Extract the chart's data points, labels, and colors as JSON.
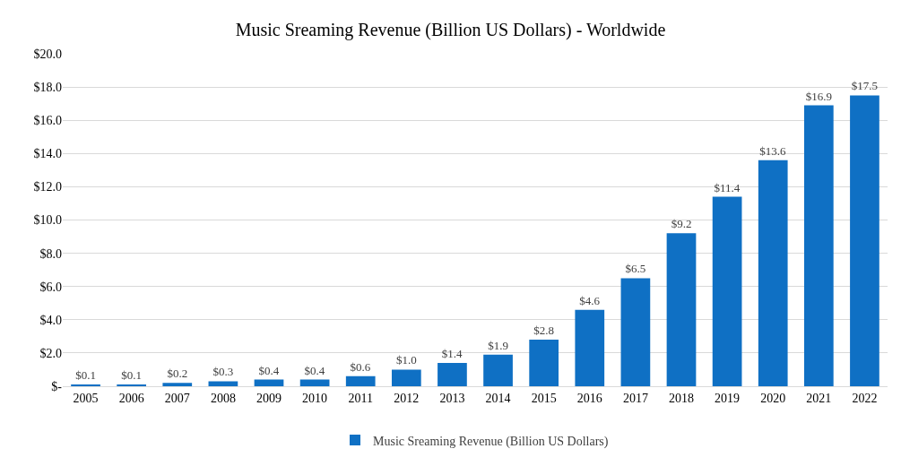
{
  "chart_data": {
    "type": "bar",
    "title": "Music Sreaming Revenue (Billion US Dollars) - Worldwide",
    "categories": [
      "2005",
      "2006",
      "2007",
      "2008",
      "2009",
      "2010",
      "2011",
      "2012",
      "2013",
      "2014",
      "2015",
      "2016",
      "2017",
      "2018",
      "2019",
      "2020",
      "2021",
      "2022"
    ],
    "series": [
      {
        "name": "Music Sreaming Revenue (Billion US Dollars)",
        "color": "#0f70c4",
        "values": [
          0.1,
          0.1,
          0.2,
          0.3,
          0.4,
          0.4,
          0.6,
          1.0,
          1.4,
          1.9,
          2.8,
          4.6,
          6.5,
          9.2,
          11.4,
          13.6,
          16.9,
          17.5
        ],
        "value_labels": [
          "$0.1",
          "$0.1",
          "$0.2",
          "$0.3",
          "$0.4",
          "$0.4",
          "$0.6",
          "$1.0",
          "$1.4",
          "$1.9",
          "$2.8",
          "$4.6",
          "$6.5",
          "$9.2",
          "$11.4",
          "$13.6",
          "$16.9",
          "$17.5"
        ]
      }
    ],
    "ylim": [
      0,
      20
    ],
    "yticks": [
      {
        "value": 0,
        "label": "$-"
      },
      {
        "value": 2,
        "label": "$2.0"
      },
      {
        "value": 4,
        "label": "$4.0"
      },
      {
        "value": 6,
        "label": "$6.0"
      },
      {
        "value": 8,
        "label": "$8.0"
      },
      {
        "value": 10,
        "label": "$10.0"
      },
      {
        "value": 12,
        "label": "$12.0"
      },
      {
        "value": 14,
        "label": "$14.0"
      },
      {
        "value": 16,
        "label": "$16.0"
      },
      {
        "value": 18,
        "label": "$18.0"
      },
      {
        "value": 20,
        "label": "$20.0"
      }
    ],
    "grid": "y",
    "legend": "bottom"
  }
}
